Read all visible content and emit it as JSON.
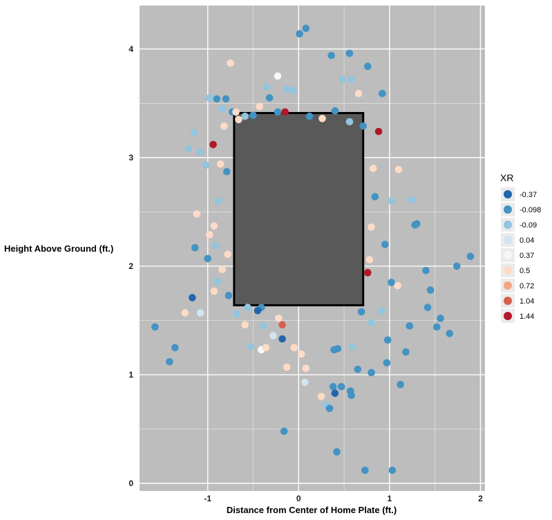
{
  "chart_data": {
    "type": "scatter",
    "xlabel": "Distance from Center of Home Plate (ft.)",
    "ylabel": "Height Above Ground (ft.)",
    "xlim": [
      -1.75,
      2.05
    ],
    "ylim": [
      -0.07,
      4.4
    ],
    "x_ticks": [
      -1,
      0,
      1,
      2
    ],
    "y_ticks": [
      0,
      1,
      2,
      3,
      4
    ],
    "x_tick_labels": [
      "-1",
      "0",
      "1",
      "2"
    ],
    "y_tick_labels": [
      "0",
      "1",
      "2",
      "3",
      "4"
    ],
    "grid": true,
    "strike_zone": {
      "x0": -0.71,
      "x1": 0.71,
      "y0": 1.64,
      "y1": 3.41
    },
    "colors": {
      "panel_background": "#bdbdbd",
      "strike_zone_fill": "#595959",
      "strike_zone_border": "#000000",
      "grid": "#ffffff"
    },
    "legend": {
      "title": "XR",
      "position": "right",
      "entries": [
        {
          "label": "-0.37",
          "color": "#2166ac"
        },
        {
          "label": "-0.098",
          "color": "#4393c3"
        },
        {
          "label": "-0.09",
          "color": "#92c5de"
        },
        {
          "label": "0.04",
          "color": "#d1e5f0"
        },
        {
          "label": "0.37",
          "color": "#f7f7f7"
        },
        {
          "label": "0.5",
          "color": "#fddbc7"
        },
        {
          "label": "0.72",
          "color": "#f4a582"
        },
        {
          "label": "1.04",
          "color": "#d6604d"
        },
        {
          "label": "1.44",
          "color": "#b2182b"
        }
      ]
    },
    "points": [
      {
        "x": -1.58,
        "y": 1.44,
        "c": 1
      },
      {
        "x": -1.42,
        "y": 1.12,
        "c": 1
      },
      {
        "x": -1.36,
        "y": 1.25,
        "c": 1
      },
      {
        "x": -1.25,
        "y": 1.57,
        "c": 5
      },
      {
        "x": -1.17,
        "y": 1.71,
        "c": 0
      },
      {
        "x": -1.08,
        "y": 1.57,
        "c": 3
      },
      {
        "x": -1.14,
        "y": 2.17,
        "c": 1
      },
      {
        "x": -1.0,
        "y": 2.07,
        "c": 1
      },
      {
        "x": -1.12,
        "y": 2.48,
        "c": 5
      },
      {
        "x": -1.08,
        "y": 3.05,
        "c": 2
      },
      {
        "x": -1.21,
        "y": 3.08,
        "c": 2
      },
      {
        "x": -1.15,
        "y": 3.23,
        "c": 2
      },
      {
        "x": -0.94,
        "y": 3.12,
        "c": 8
      },
      {
        "x": -1.02,
        "y": 2.93,
        "c": 2
      },
      {
        "x": -0.98,
        "y": 3.55,
        "c": 2
      },
      {
        "x": -0.9,
        "y": 3.54,
        "c": 1
      },
      {
        "x": -0.8,
        "y": 3.54,
        "c": 1
      },
      {
        "x": -0.73,
        "y": 3.42,
        "c": 1
      },
      {
        "x": -0.84,
        "y": 3.45,
        "c": 2
      },
      {
        "x": -0.69,
        "y": 3.42,
        "c": 5
      },
      {
        "x": -0.75,
        "y": 3.87,
        "c": 5
      },
      {
        "x": -0.82,
        "y": 3.29,
        "c": 5
      },
      {
        "x": -0.86,
        "y": 2.94,
        "c": 5
      },
      {
        "x": -0.79,
        "y": 2.87,
        "c": 1
      },
      {
        "x": -0.88,
        "y": 2.6,
        "c": 2
      },
      {
        "x": -0.93,
        "y": 2.37,
        "c": 5
      },
      {
        "x": -0.98,
        "y": 2.29,
        "c": 5
      },
      {
        "x": -0.91,
        "y": 2.19,
        "c": 2
      },
      {
        "x": -0.78,
        "y": 2.11,
        "c": 5
      },
      {
        "x": -0.84,
        "y": 1.97,
        "c": 5
      },
      {
        "x": -0.89,
        "y": 1.86,
        "c": 2
      },
      {
        "x": -0.93,
        "y": 1.77,
        "c": 5
      },
      {
        "x": -0.77,
        "y": 1.73,
        "c": 1
      },
      {
        "x": -0.68,
        "y": 1.56,
        "c": 2
      },
      {
        "x": -0.59,
        "y": 1.46,
        "c": 5
      },
      {
        "x": -0.53,
        "y": 1.26,
        "c": 2
      },
      {
        "x": -0.41,
        "y": 1.23,
        "c": 4
      },
      {
        "x": -0.36,
        "y": 1.25,
        "c": 5
      },
      {
        "x": -0.28,
        "y": 1.36,
        "c": 3
      },
      {
        "x": -0.18,
        "y": 1.33,
        "c": 0
      },
      {
        "x": -0.13,
        "y": 1.07,
        "c": 5
      },
      {
        "x": -0.05,
        "y": 1.25,
        "c": 5
      },
      {
        "x": 0.03,
        "y": 1.19,
        "c": 5
      },
      {
        "x": 0.08,
        "y": 1.06,
        "c": 5
      },
      {
        "x": 0.07,
        "y": 0.93,
        "c": 3
      },
      {
        "x": 0.25,
        "y": 0.8,
        "c": 5
      },
      {
        "x": 0.3,
        "y": 0.72,
        "c": 2
      },
      {
        "x": 0.34,
        "y": 0.69,
        "c": 1
      },
      {
        "x": 0.38,
        "y": 0.89,
        "c": 1
      },
      {
        "x": 0.4,
        "y": 0.83,
        "c": 0
      },
      {
        "x": 0.47,
        "y": 0.89,
        "c": 1
      },
      {
        "x": 0.57,
        "y": 0.85,
        "c": 1
      },
      {
        "x": 0.58,
        "y": 0.81,
        "c": 1
      },
      {
        "x": 0.65,
        "y": 1.05,
        "c": 1
      },
      {
        "x": 0.8,
        "y": 1.02,
        "c": 1
      },
      {
        "x": 0.97,
        "y": 1.11,
        "c": 1
      },
      {
        "x": 0.98,
        "y": 1.32,
        "c": 1
      },
      {
        "x": 1.12,
        "y": 0.91,
        "c": 1
      },
      {
        "x": 1.18,
        "y": 1.21,
        "c": 1
      },
      {
        "x": 1.22,
        "y": 1.45,
        "c": 1
      },
      {
        "x": 1.42,
        "y": 1.62,
        "c": 1
      },
      {
        "x": 1.45,
        "y": 1.78,
        "c": 1
      },
      {
        "x": 1.52,
        "y": 1.44,
        "c": 1
      },
      {
        "x": 1.56,
        "y": 1.52,
        "c": 1
      },
      {
        "x": 1.66,
        "y": 1.38,
        "c": 1
      },
      {
        "x": 1.4,
        "y": 1.96,
        "c": 1
      },
      {
        "x": 1.74,
        "y": 2.0,
        "c": 1
      },
      {
        "x": 1.89,
        "y": 2.09,
        "c": 1
      },
      {
        "x": 1.28,
        "y": 2.38,
        "c": 1
      },
      {
        "x": 1.3,
        "y": 2.39,
        "c": 1
      },
      {
        "x": 1.24,
        "y": 2.61,
        "c": 2
      },
      {
        "x": 1.02,
        "y": 2.6,
        "c": 2
      },
      {
        "x": 1.1,
        "y": 2.89,
        "c": 5
      },
      {
        "x": 0.82,
        "y": 2.9,
        "c": 5
      },
      {
        "x": 0.84,
        "y": 2.64,
        "c": 1
      },
      {
        "x": 0.8,
        "y": 2.36,
        "c": 5
      },
      {
        "x": 0.95,
        "y": 2.2,
        "c": 1
      },
      {
        "x": 0.78,
        "y": 2.06,
        "c": 5
      },
      {
        "x": 0.76,
        "y": 1.94,
        "c": 8
      },
      {
        "x": 1.02,
        "y": 1.85,
        "c": 1
      },
      {
        "x": 1.09,
        "y": 1.82,
        "c": 5
      },
      {
        "x": 0.91,
        "y": 1.59,
        "c": 2
      },
      {
        "x": 0.8,
        "y": 1.48,
        "c": 2
      },
      {
        "x": 0.69,
        "y": 1.58,
        "c": 1
      },
      {
        "x": 0.59,
        "y": 1.26,
        "c": 2
      },
      {
        "x": 0.43,
        "y": 1.24,
        "c": 1
      },
      {
        "x": 0.39,
        "y": 1.23,
        "c": 1
      },
      {
        "x": 0.73,
        "y": 0.12,
        "c": 1
      },
      {
        "x": 1.03,
        "y": 0.12,
        "c": 1
      },
      {
        "x": 0.42,
        "y": 0.29,
        "c": 1
      },
      {
        "x": -0.16,
        "y": 0.48,
        "c": 1
      },
      {
        "x": -0.18,
        "y": 1.46,
        "c": 7
      },
      {
        "x": -0.22,
        "y": 1.52,
        "c": 5
      },
      {
        "x": -0.41,
        "y": 1.62,
        "c": 1
      },
      {
        "x": -0.45,
        "y": 1.59,
        "c": 0
      },
      {
        "x": -0.56,
        "y": 1.62,
        "c": 2
      },
      {
        "x": -0.39,
        "y": 1.45,
        "c": 2
      },
      {
        "x": 0.01,
        "y": 4.14,
        "c": 1
      },
      {
        "x": 0.08,
        "y": 4.19,
        "c": 1
      },
      {
        "x": 0.36,
        "y": 3.94,
        "c": 1
      },
      {
        "x": 0.56,
        "y": 3.96,
        "c": 1
      },
      {
        "x": 0.48,
        "y": 3.72,
        "c": 2
      },
      {
        "x": 0.58,
        "y": 3.72,
        "c": 2
      },
      {
        "x": 0.76,
        "y": 3.84,
        "c": 1
      },
      {
        "x": 0.66,
        "y": 3.59,
        "c": 5
      },
      {
        "x": 0.92,
        "y": 3.59,
        "c": 1
      },
      {
        "x": 0.88,
        "y": 3.24,
        "c": 8
      },
      {
        "x": 0.71,
        "y": 3.29,
        "c": 1
      },
      {
        "x": -0.23,
        "y": 3.75,
        "c": 4
      },
      {
        "x": -0.13,
        "y": 3.63,
        "c": 2
      },
      {
        "x": -0.35,
        "y": 3.65,
        "c": 2
      },
      {
        "x": -0.32,
        "y": 3.55,
        "c": 1
      },
      {
        "x": -0.15,
        "y": 3.42,
        "c": 8
      },
      {
        "x": -0.23,
        "y": 3.42,
        "c": 1
      },
      {
        "x": -0.43,
        "y": 3.47,
        "c": 5
      },
      {
        "x": -0.5,
        "y": 3.39,
        "c": 1
      },
      {
        "x": -0.59,
        "y": 3.38,
        "c": 2
      },
      {
        "x": -0.66,
        "y": 3.35,
        "c": 5
      },
      {
        "x": -0.06,
        "y": 3.62,
        "c": 2
      },
      {
        "x": 0.4,
        "y": 3.43,
        "c": 1
      },
      {
        "x": 0.12,
        "y": 3.38,
        "c": 1
      },
      {
        "x": 0.26,
        "y": 3.36,
        "c": 5
      },
      {
        "x": 0.56,
        "y": 3.33,
        "c": 2
      }
    ]
  }
}
